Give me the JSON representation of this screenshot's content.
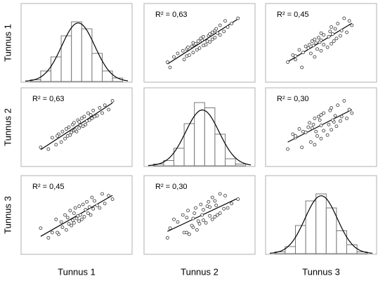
{
  "chart_data": {
    "type": "scatter_matrix",
    "variables": [
      {
        "name": "Tunnus 1",
        "lim": [
          10,
          90
        ],
        "values": [
          22,
          28,
          31,
          34,
          36,
          38,
          39,
          41,
          42,
          43,
          44,
          45,
          46,
          47,
          48,
          48,
          49,
          50,
          51,
          52,
          52,
          53,
          54,
          55,
          56,
          57,
          58,
          59,
          60,
          61,
          62,
          63,
          64,
          66,
          68,
          70,
          72,
          75,
          78,
          35
        ]
      },
      {
        "name": "Tunnus 2",
        "lim": [
          10,
          90
        ],
        "values": [
          27,
          25,
          38,
          30,
          42,
          33,
          45,
          37,
          48,
          40,
          50,
          41,
          44,
          53,
          46,
          55,
          47,
          45,
          58,
          49,
          56,
          52,
          60,
          51,
          62,
          53,
          57,
          66,
          58,
          64,
          60,
          69,
          62,
          63,
          72,
          66,
          75,
          70,
          80,
          40
        ]
      },
      {
        "name": "Tunnus 3",
        "lim": [
          10,
          90
        ],
        "values": [
          35,
          24,
          30,
          45,
          28,
          42,
          36,
          50,
          33,
          47,
          40,
          55,
          38,
          44,
          52,
          41,
          58,
          46,
          49,
          43,
          60,
          50,
          45,
          62,
          48,
          56,
          65,
          52,
          59,
          50,
          70,
          57,
          66,
          61,
          58,
          74,
          63,
          72,
          68,
          30
        ]
      }
    ],
    "histograms": [
      {
        "bins": [
          14,
          22,
          30,
          38,
          46,
          54,
          62,
          70,
          78,
          86
        ],
        "counts": [
          1,
          6,
          14,
          26,
          34,
          30,
          16,
          6,
          2
        ],
        "ylim": [
          0,
          40
        ]
      },
      {
        "bins": [
          14,
          22,
          30,
          38,
          46,
          54,
          62,
          70,
          78,
          86
        ],
        "counts": [
          1,
          3,
          10,
          24,
          36,
          33,
          18,
          4,
          1
        ],
        "ylim": [
          0,
          40
        ]
      },
      {
        "bins": [
          14,
          22,
          30,
          38,
          46,
          54,
          62,
          70,
          78,
          86
        ],
        "counts": [
          1,
          4,
          16,
          30,
          34,
          26,
          13,
          5,
          1
        ],
        "ylim": [
          0,
          40
        ]
      }
    ],
    "annotations": [
      {
        "pair": [
          0,
          1
        ],
        "text": "R² = 0,63"
      },
      {
        "pair": [
          0,
          2
        ],
        "text": "R² = 0,45"
      },
      {
        "pair": [
          1,
          0
        ],
        "text": "R² = 0,63"
      },
      {
        "pair": [
          1,
          2
        ],
        "text": "R² = 0,30"
      },
      {
        "pair": [
          2,
          0
        ],
        "text": "R² = 0,45"
      },
      {
        "pair": [
          2,
          1
        ],
        "text": "R² = 0,30"
      }
    ]
  }
}
